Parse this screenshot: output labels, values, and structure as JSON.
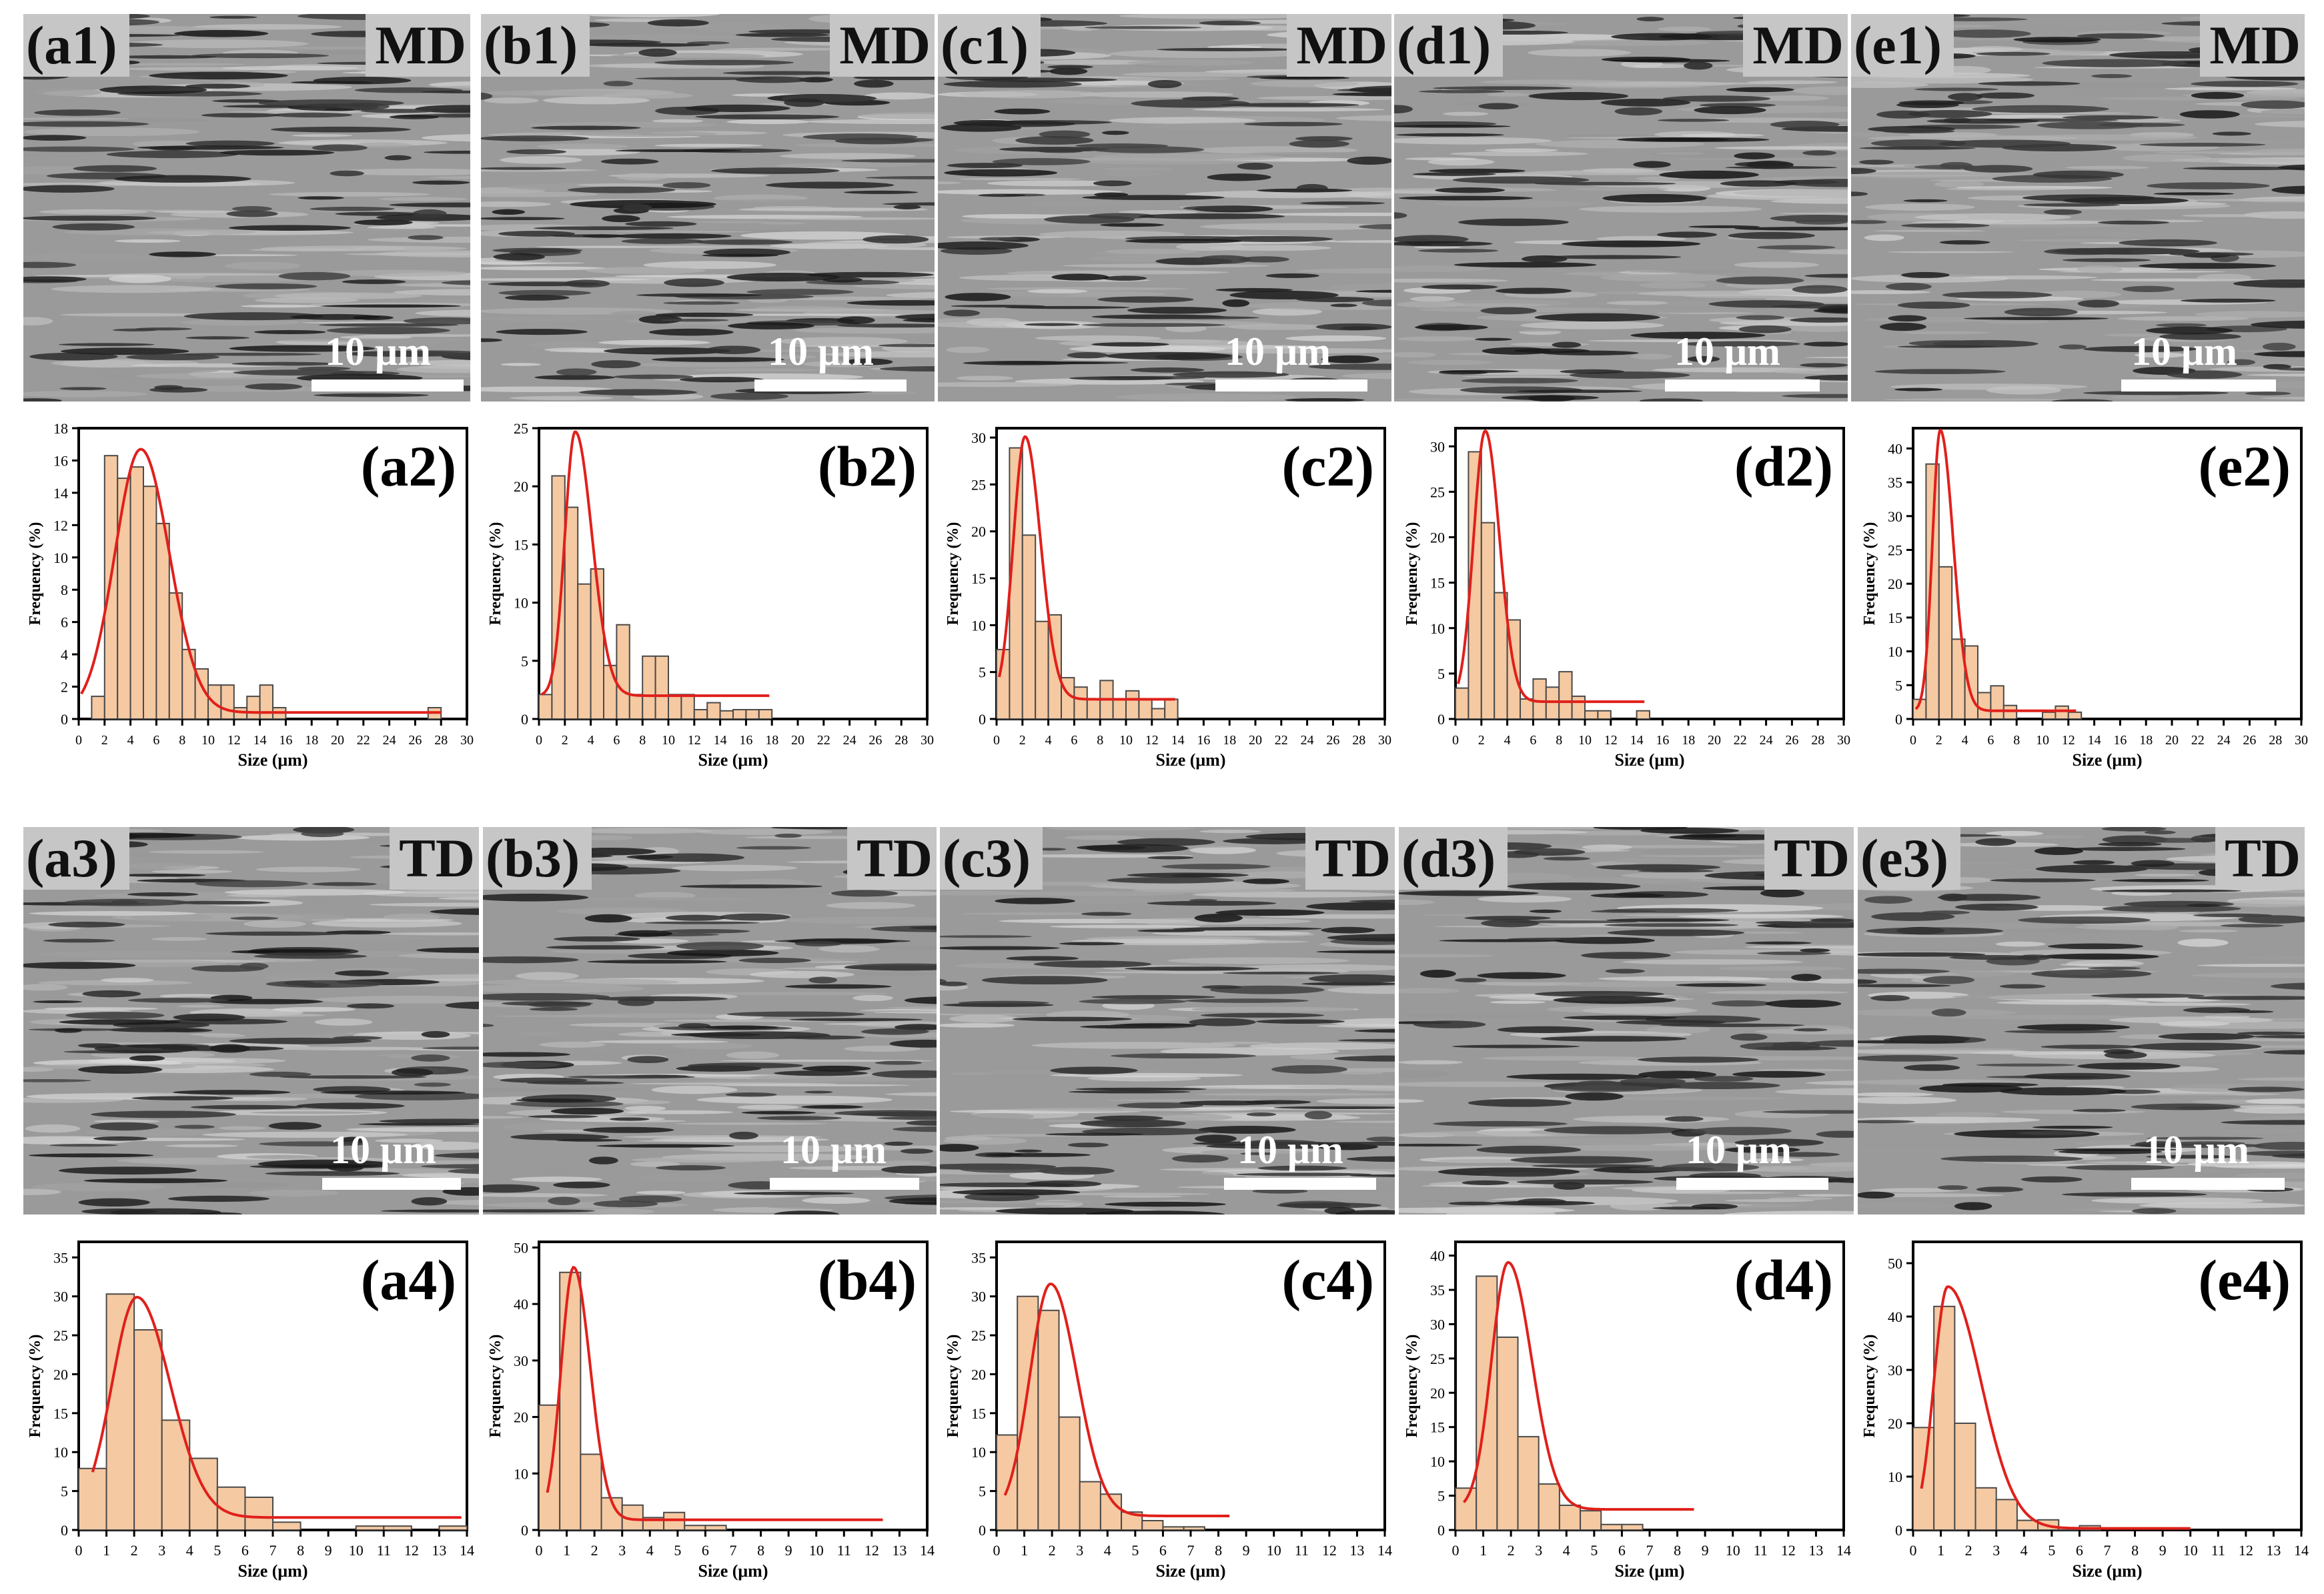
{
  "figure": {
    "colors": {
      "bar_fill": "#F5C9A2",
      "bar_stroke": "#4a4a4a",
      "fit_curve": "#E0201B",
      "axis": "#000000",
      "sem_gray": "#9a9a9a"
    },
    "scale_bar_text": "10 μm"
  },
  "images": [
    {
      "label": "(a1)",
      "direction": "MD"
    },
    {
      "label": "(b1)",
      "direction": "MD"
    },
    {
      "label": "(c1)",
      "direction": "MD"
    },
    {
      "label": "(d1)",
      "direction": "MD"
    },
    {
      "label": "(e1)",
      "direction": "MD"
    },
    {
      "label": "(a3)",
      "direction": "TD"
    },
    {
      "label": "(b3)",
      "direction": "TD"
    },
    {
      "label": "(c3)",
      "direction": "TD"
    },
    {
      "label": "(d3)",
      "direction": "TD"
    },
    {
      "label": "(e3)",
      "direction": "TD"
    }
  ],
  "chart_data": [
    {
      "type": "bar",
      "label": "(a2)",
      "xlabel": "Size (μm)",
      "ylabel": "Frequency (%)",
      "xlim": [
        0,
        30
      ],
      "ylim": [
        0,
        18
      ],
      "xticks": [
        0,
        2,
        4,
        6,
        8,
        10,
        12,
        14,
        16,
        18,
        20,
        22,
        24,
        26,
        28,
        30
      ],
      "yticks": [
        0,
        2,
        4,
        6,
        8,
        10,
        12,
        14,
        16,
        18
      ],
      "bin_width": 1,
      "bins": [
        [
          1.5,
          1.4
        ],
        [
          2.5,
          16.3
        ],
        [
          3.5,
          14.9
        ],
        [
          4.5,
          15.6
        ],
        [
          5.5,
          14.4
        ],
        [
          6.5,
          12.1
        ],
        [
          7.5,
          7.8
        ],
        [
          8.5,
          4.3
        ],
        [
          9.5,
          3.1
        ],
        [
          10.5,
          2.1
        ],
        [
          11.5,
          2.1
        ],
        [
          12.5,
          0.7
        ],
        [
          13.5,
          1.4
        ],
        [
          14.5,
          2.1
        ],
        [
          15.5,
          0.7
        ],
        [
          27.5,
          0.7
        ]
      ],
      "fit": {
        "peak_x": 4.8,
        "peak_y": 16.7,
        "sigma_left": 2.0,
        "sigma_right": 2.2,
        "baseline": 0.4,
        "x_start": 0.2,
        "x_end": 28
      }
    },
    {
      "type": "bar",
      "label": "(b2)",
      "xlabel": "Size (μm)",
      "ylabel": "Frequency (%)",
      "xlim": [
        0,
        30
      ],
      "ylim": [
        0,
        25
      ],
      "xticks": [
        0,
        2,
        4,
        6,
        8,
        10,
        12,
        14,
        16,
        18,
        20,
        22,
        24,
        26,
        28,
        30
      ],
      "yticks": [
        0,
        5,
        10,
        15,
        20,
        25
      ],
      "bin_width": 1,
      "bins": [
        [
          0.5,
          2.1
        ],
        [
          1.5,
          20.9
        ],
        [
          2.5,
          18.2
        ],
        [
          3.5,
          11.6
        ],
        [
          4.5,
          12.9
        ],
        [
          5.5,
          4.6
        ],
        [
          6.5,
          8.1
        ],
        [
          7.5,
          2.1
        ],
        [
          8.5,
          5.4
        ],
        [
          9.5,
          5.4
        ],
        [
          10.5,
          2.1
        ],
        [
          11.5,
          2.1
        ],
        [
          12.5,
          0.8
        ],
        [
          13.5,
          1.4
        ],
        [
          14.5,
          0.7
        ],
        [
          15.5,
          0.8
        ],
        [
          16.5,
          0.8
        ],
        [
          17.5,
          0.8
        ]
      ],
      "fit": {
        "peak_x": 2.8,
        "peak_y": 24.7,
        "sigma_left": 0.8,
        "sigma_right": 1.3,
        "baseline": 2.0,
        "x_start": 0.2,
        "x_end": 17.8
      }
    },
    {
      "type": "bar",
      "label": "(c2)",
      "xlabel": "Size (μm)",
      "ylabel": "Frequency (%)",
      "xlim": [
        0,
        30
      ],
      "ylim": [
        0,
        31
      ],
      "xticks": [
        0,
        2,
        4,
        6,
        8,
        10,
        12,
        14,
        16,
        18,
        20,
        22,
        24,
        26,
        28,
        30
      ],
      "yticks": [
        0,
        5,
        10,
        15,
        20,
        25,
        30
      ],
      "bin_width": 1,
      "bins": [
        [
          0.5,
          7.4
        ],
        [
          1.5,
          28.9
        ],
        [
          2.5,
          19.6
        ],
        [
          3.5,
          10.4
        ],
        [
          4.5,
          11.1
        ],
        [
          5.5,
          4.4
        ],
        [
          6.5,
          3.4
        ],
        [
          7.5,
          2.1
        ],
        [
          8.5,
          4.1
        ],
        [
          9.5,
          2.1
        ],
        [
          10.5,
          3.0
        ],
        [
          11.5,
          2.1
        ],
        [
          12.5,
          1.1
        ],
        [
          13.5,
          2.1
        ]
      ],
      "fit": {
        "peak_x": 2.2,
        "peak_y": 30.1,
        "sigma_left": 0.9,
        "sigma_right": 1.2,
        "baseline": 2.1,
        "x_start": 0.2,
        "x_end": 13.8
      }
    },
    {
      "type": "bar",
      "label": "(d2)",
      "xlabel": "Size (μm)",
      "ylabel": "Frequency (%)",
      "xlim": [
        0,
        30
      ],
      "ylim": [
        0,
        32
      ],
      "xticks": [
        0,
        2,
        4,
        6,
        8,
        10,
        12,
        14,
        16,
        18,
        20,
        22,
        24,
        26,
        28,
        30
      ],
      "yticks": [
        0,
        5,
        10,
        15,
        20,
        25,
        30
      ],
      "bin_width": 1,
      "bins": [
        [
          0.5,
          3.4
        ],
        [
          1.5,
          29.4
        ],
        [
          2.5,
          21.6
        ],
        [
          3.5,
          13.9
        ],
        [
          4.5,
          10.9
        ],
        [
          5.5,
          2.2
        ],
        [
          6.5,
          4.4
        ],
        [
          7.5,
          3.5
        ],
        [
          8.5,
          5.2
        ],
        [
          9.5,
          2.5
        ],
        [
          10.5,
          0.9
        ],
        [
          11.5,
          0.9
        ],
        [
          14.5,
          0.9
        ]
      ],
      "fit": {
        "peak_x": 2.3,
        "peak_y": 31.7,
        "sigma_left": 0.9,
        "sigma_right": 1.1,
        "baseline": 1.9,
        "x_start": 0.2,
        "x_end": 14.6
      }
    },
    {
      "type": "bar",
      "label": "(e2)",
      "xlabel": "Size (μm)",
      "ylabel": "Frequency (%)",
      "xlim": [
        0,
        30
      ],
      "ylim": [
        0,
        43
      ],
      "xticks": [
        0,
        2,
        4,
        6,
        8,
        10,
        12,
        14,
        16,
        18,
        20,
        22,
        24,
        26,
        28,
        30
      ],
      "yticks": [
        0,
        5,
        10,
        15,
        20,
        25,
        30,
        35,
        40
      ],
      "bin_width": 1,
      "bins": [
        [
          0.5,
          2.9
        ],
        [
          1.5,
          37.7
        ],
        [
          2.5,
          22.5
        ],
        [
          3.5,
          11.8
        ],
        [
          4.5,
          10.8
        ],
        [
          5.5,
          3.9
        ],
        [
          6.5,
          4.9
        ],
        [
          7.5,
          2.0
        ],
        [
          10.5,
          1.0
        ],
        [
          11.5,
          1.9
        ],
        [
          12.5,
          1.0
        ]
      ],
      "fit": {
        "peak_x": 2.1,
        "peak_y": 42.7,
        "sigma_left": 0.6,
        "sigma_right": 1.0,
        "baseline": 1.2,
        "x_start": 0.2,
        "x_end": 12.6
      }
    },
    {
      "type": "bar",
      "label": "(a4)",
      "xlabel": "Size (μm)",
      "ylabel": "Frequency (%)",
      "xlim": [
        0,
        14
      ],
      "ylim": [
        0,
        37
      ],
      "xticks": [
        0,
        1,
        2,
        3,
        4,
        5,
        6,
        7,
        8,
        9,
        10,
        11,
        12,
        13,
        14
      ],
      "yticks": [
        0,
        5,
        10,
        15,
        20,
        25,
        30,
        35
      ],
      "bin_width": 1,
      "bins": [
        [
          0.5,
          7.9
        ],
        [
          1.5,
          30.3
        ],
        [
          2.5,
          25.7
        ],
        [
          3.5,
          14.1
        ],
        [
          4.5,
          9.2
        ],
        [
          5.5,
          5.5
        ],
        [
          6.5,
          4.2
        ],
        [
          7.5,
          1.0
        ],
        [
          10.5,
          0.5
        ],
        [
          11.5,
          0.5
        ],
        [
          13.5,
          0.5
        ]
      ],
      "fit": {
        "peak_x": 2.1,
        "peak_y": 29.9,
        "sigma_left": 0.9,
        "sigma_right": 1.2,
        "baseline": 1.6,
        "x_start": 0.5,
        "x_end": 13.8
      }
    },
    {
      "type": "bar",
      "label": "(b4)",
      "xlabel": "Size (μm)",
      "ylabel": "Frequency (%)",
      "xlim": [
        0,
        14
      ],
      "ylim": [
        0,
        51
      ],
      "xticks": [
        0,
        1,
        2,
        3,
        4,
        5,
        6,
        7,
        8,
        9,
        10,
        11,
        12,
        13,
        14
      ],
      "yticks": [
        0,
        10,
        20,
        30,
        40,
        50
      ],
      "bin_width": 0.75,
      "bins": [
        [
          0.375,
          22.1
        ],
        [
          1.125,
          45.6
        ],
        [
          1.875,
          13.4
        ],
        [
          2.625,
          5.7
        ],
        [
          3.375,
          4.4
        ],
        [
          4.125,
          2.2
        ],
        [
          4.875,
          3.1
        ],
        [
          5.625,
          0.8
        ],
        [
          6.375,
          0.8
        ]
      ],
      "fit": {
        "peak_x": 1.25,
        "peak_y": 46.5,
        "sigma_left": 0.45,
        "sigma_right": 0.6,
        "baseline": 1.8,
        "x_start": 0.3,
        "x_end": 12.4
      }
    },
    {
      "type": "bar",
      "label": "(c4)",
      "xlabel": "Size (μm)",
      "ylabel": "Frequency (%)",
      "xlim": [
        0,
        14
      ],
      "ylim": [
        0,
        37
      ],
      "xticks": [
        0,
        1,
        2,
        3,
        4,
        5,
        6,
        7,
        8,
        9,
        10,
        11,
        12,
        13,
        14
      ],
      "yticks": [
        0,
        5,
        10,
        15,
        20,
        25,
        30,
        35
      ],
      "bin_width": 0.75,
      "bins": [
        [
          0.375,
          12.2
        ],
        [
          1.125,
          30.0
        ],
        [
          1.875,
          28.2
        ],
        [
          2.625,
          14.5
        ],
        [
          3.375,
          6.2
        ],
        [
          4.125,
          4.6
        ],
        [
          4.875,
          2.3
        ],
        [
          5.625,
          1.2
        ],
        [
          6.375,
          0.4
        ],
        [
          7.125,
          0.4
        ]
      ],
      "fit": {
        "peak_x": 1.95,
        "peak_y": 31.6,
        "sigma_left": 0.75,
        "sigma_right": 0.95,
        "baseline": 1.8,
        "x_start": 0.3,
        "x_end": 8.4
      }
    },
    {
      "type": "bar",
      "label": "(d4)",
      "xlabel": "Size (μm)",
      "ylabel": "Frequency (%)",
      "xlim": [
        0,
        14
      ],
      "ylim": [
        0,
        42
      ],
      "xticks": [
        0,
        1,
        2,
        3,
        4,
        5,
        6,
        7,
        8,
        9,
        10,
        11,
        12,
        13,
        14
      ],
      "yticks": [
        0,
        5,
        10,
        15,
        20,
        25,
        30,
        35,
        40
      ],
      "bin_width": 0.75,
      "bins": [
        [
          0.375,
          6.1
        ],
        [
          1.125,
          37.0
        ],
        [
          1.875,
          28.1
        ],
        [
          2.625,
          13.6
        ],
        [
          3.375,
          6.7
        ],
        [
          4.125,
          3.6
        ],
        [
          4.875,
          2.8
        ],
        [
          5.625,
          0.8
        ],
        [
          6.375,
          0.8
        ]
      ],
      "fit": {
        "peak_x": 1.9,
        "peak_y": 39.0,
        "sigma_left": 0.6,
        "sigma_right": 0.85,
        "baseline": 3.0,
        "x_start": 0.3,
        "x_end": 8.6
      }
    },
    {
      "type": "bar",
      "label": "(e4)",
      "xlabel": "Size (μm)",
      "ylabel": "Frequency (%)",
      "xlim": [
        0,
        14
      ],
      "ylim": [
        0,
        54
      ],
      "xticks": [
        0,
        1,
        2,
        3,
        4,
        5,
        6,
        7,
        8,
        9,
        10,
        11,
        12,
        13,
        14
      ],
      "yticks": [
        0,
        10,
        20,
        30,
        40,
        50
      ],
      "bin_width": 0.75,
      "bins": [
        [
          0.375,
          19.2
        ],
        [
          1.125,
          41.9
        ],
        [
          1.875,
          20.0
        ],
        [
          2.625,
          7.9
        ],
        [
          3.375,
          5.7
        ],
        [
          4.125,
          1.8
        ],
        [
          4.875,
          1.9
        ],
        [
          5.625,
          0.4
        ],
        [
          6.375,
          0.8
        ]
      ],
      "fit": {
        "peak_x": 1.25,
        "peak_y": 45.6,
        "sigma_left": 0.5,
        "sigma_right": 1.2,
        "baseline": 0.3,
        "x_start": 0.3,
        "x_end": 10.0
      }
    }
  ]
}
